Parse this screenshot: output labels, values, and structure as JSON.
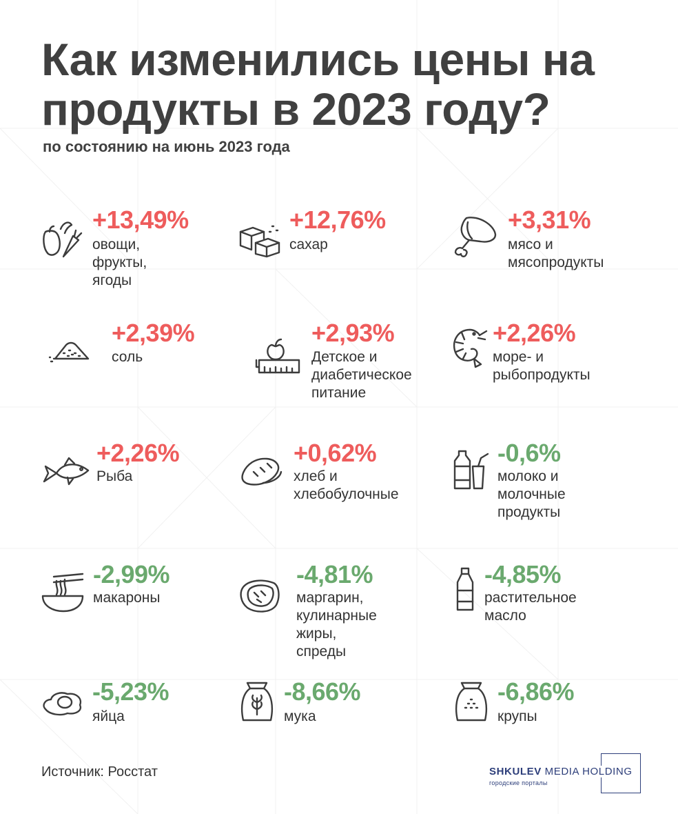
{
  "title": "Как изменились цены на продукты в 2023 году?",
  "subtitle": "по состоянию на июнь 2023 года",
  "colors": {
    "increase": "#ee5c5c",
    "decrease": "#6aa96e",
    "text": "#404040",
    "brand": "#2d3e7a"
  },
  "items": [
    {
      "value": "+13,49%",
      "label": "овощи,\nфрукты, ягоды",
      "icon": "vegetables-icon",
      "direction": "up"
    },
    {
      "value": "+12,76%",
      "label": "сахар",
      "icon": "sugar-cubes-icon",
      "direction": "up"
    },
    {
      "value": "+3,31%",
      "label": "мясо и\nмясопродукты",
      "icon": "meat-leg-icon",
      "direction": "up"
    },
    {
      "value": "+2,39%",
      "label": "соль",
      "icon": "salt-pile-icon",
      "direction": "up"
    },
    {
      "value": "+2,93%",
      "label": "Детское и\nдиабетическое\nпитание",
      "icon": "baby-food-scale-icon",
      "direction": "up"
    },
    {
      "value": "+2,26%",
      "label": "море- и\nрыбопродукты",
      "icon": "shrimp-icon",
      "direction": "up"
    },
    {
      "value": "+2,26%",
      "label": "Рыба",
      "icon": "fish-icon",
      "direction": "up"
    },
    {
      "value": "+0,62%",
      "label": "хлеб и\nхлебобулочные",
      "icon": "bread-icon",
      "direction": "up"
    },
    {
      "value": "-0,6%",
      "label": "молоко и молочные\nпродукты",
      "icon": "milk-icon",
      "direction": "down"
    },
    {
      "value": "-2,99%",
      "label": "макароны",
      "icon": "noodles-bowl-icon",
      "direction": "down"
    },
    {
      "value": "-4,81%",
      "label": "маргарин,\nкулинарные\nжиры, спреды",
      "icon": "butter-icon",
      "direction": "down"
    },
    {
      "value": "-4,85%",
      "label": "растительное\nмасло",
      "icon": "oil-bottle-icon",
      "direction": "down"
    },
    {
      "value": "-5,23%",
      "label": "яйца",
      "icon": "fried-egg-icon",
      "direction": "down"
    },
    {
      "value": "-8,66%",
      "label": "мука",
      "icon": "flour-sack-icon",
      "direction": "down"
    },
    {
      "value": "-6,86%",
      "label": "крупы",
      "icon": "grain-sack-icon",
      "direction": "down"
    }
  ],
  "source": "Источник: Росстат",
  "logo": {
    "brand_bold": "SHKULEV",
    "brand_rest": " MEDIA HOLDING",
    "tagline": "городские порталы"
  }
}
